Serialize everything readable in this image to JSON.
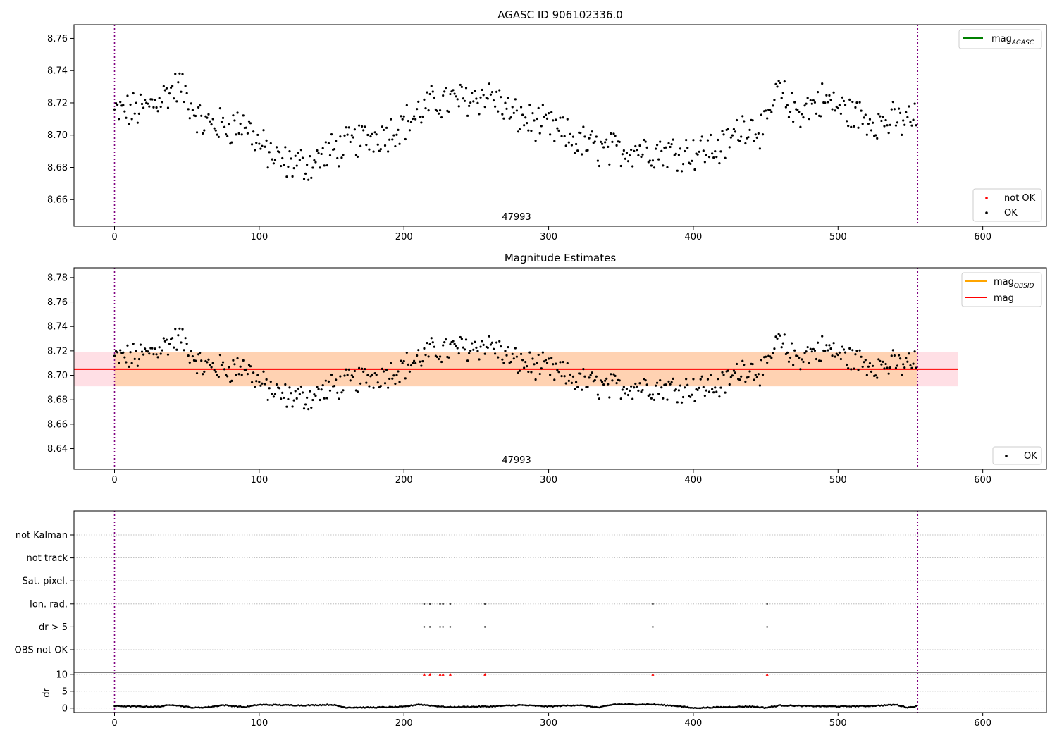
{
  "chart_data": [
    {
      "type": "scatter",
      "title": "AGASC ID 906102336.0",
      "annotation": "47993",
      "xlim": [
        -28,
        644
      ],
      "ylim": [
        8.6435,
        8.7685
      ],
      "xticks": [
        0,
        100,
        200,
        300,
        400,
        500,
        600
      ],
      "yticks": [
        8.66,
        8.68,
        8.7,
        8.72,
        8.74,
        8.76
      ],
      "ytick_labels": [
        "8.66",
        "8.68",
        "8.70",
        "8.72",
        "8.74",
        "8.76"
      ],
      "vlines": [
        0,
        555
      ],
      "legend_lines": {
        "label": "mag",
        "sub": "AGASC",
        "color": "#008000",
        "location": "upper-right"
      },
      "legend_points": {
        "location": "lower-right",
        "entries": [
          {
            "label": "not OK",
            "color": "#ff0000"
          },
          {
            "label": "OK",
            "color": "#000000"
          }
        ]
      },
      "n_points": 555,
      "trend": [
        [
          0,
          8.714
        ],
        [
          20,
          8.716
        ],
        [
          45,
          8.731
        ],
        [
          60,
          8.708
        ],
        [
          80,
          8.705
        ],
        [
          90,
          8.708
        ],
        [
          100,
          8.694
        ],
        [
          115,
          8.683
        ],
        [
          135,
          8.682
        ],
        [
          150,
          8.69
        ],
        [
          170,
          8.697
        ],
        [
          190,
          8.702
        ],
        [
          205,
          8.71
        ],
        [
          220,
          8.72
        ],
        [
          240,
          8.722
        ],
        [
          260,
          8.725
        ],
        [
          275,
          8.712
        ],
        [
          300,
          8.705
        ],
        [
          320,
          8.696
        ],
        [
          340,
          8.69
        ],
        [
          360,
          8.692
        ],
        [
          380,
          8.69
        ],
        [
          400,
          8.69
        ],
        [
          420,
          8.692
        ],
        [
          435,
          8.707
        ],
        [
          450,
          8.703
        ],
        [
          458,
          8.728
        ],
        [
          470,
          8.714
        ],
        [
          490,
          8.722
        ],
        [
          510,
          8.713
        ],
        [
          530,
          8.708
        ],
        [
          545,
          8.709
        ],
        [
          555,
          8.71
        ]
      ]
    },
    {
      "type": "scatter",
      "title": "Magnitude Estimates",
      "annotation": "47993",
      "xlim": [
        -28,
        644
      ],
      "ylim": [
        8.623,
        8.788
      ],
      "xticks": [
        0,
        100,
        200,
        300,
        400,
        500,
        600
      ],
      "yticks": [
        8.64,
        8.66,
        8.68,
        8.7,
        8.72,
        8.74,
        8.76,
        8.78
      ],
      "ytick_labels": [
        "8.64",
        "8.66",
        "8.68",
        "8.70",
        "8.72",
        "8.74",
        "8.76",
        "8.78"
      ],
      "vlines": [
        0,
        555
      ],
      "mag_line": {
        "value": 8.705,
        "x": [
          -28,
          583
        ],
        "color": "#ff0000"
      },
      "mag_band": {
        "low": 8.691,
        "high": 8.719,
        "x": [
          -28,
          583
        ],
        "color": "#ffc0cb"
      },
      "obsid_band": {
        "low": 8.691,
        "high": 8.719,
        "x": [
          0,
          555
        ],
        "color": "#ffa500"
      },
      "legend_lines": {
        "location": "upper-right",
        "entries": [
          {
            "label": "mag",
            "sub": "OBSID",
            "color": "#ffa500"
          },
          {
            "label": "mag",
            "sub": "",
            "color": "#ff0000"
          }
        ]
      },
      "legend_points": {
        "location": "lower-right",
        "entries": [
          {
            "label": "OK",
            "color": "#000000"
          }
        ]
      }
    },
    {
      "type": "scatter",
      "flag_categories": [
        "not Kalman",
        "not track",
        "Sat. pixel.",
        "Ion. rad.",
        "dr > 5",
        "OBS not OK"
      ],
      "flag_events": {
        "Ion. rad.": [
          214,
          218,
          225,
          227,
          232,
          256,
          372,
          451
        ],
        "dr > 5": [
          214,
          218,
          225,
          227,
          232,
          256,
          372,
          451
        ]
      },
      "dr_ylabel": "dr",
      "dr_yticks": [
        0,
        5,
        10
      ],
      "dr_ylim": [
        -1.3,
        10.6
      ],
      "dr_clipped_x": [
        214,
        218,
        225,
        227,
        232,
        256,
        372,
        451
      ],
      "dr_clipped_color": "#ff0000",
      "dr_profile": [
        [
          0,
          0.6
        ],
        [
          30,
          0.4
        ],
        [
          40,
          1.0
        ],
        [
          55,
          0.1
        ],
        [
          65,
          0.3
        ],
        [
          75,
          0.9
        ],
        [
          90,
          0.3
        ],
        [
          100,
          1.0
        ],
        [
          130,
          0.8
        ],
        [
          150,
          1.0
        ],
        [
          160,
          0.2
        ],
        [
          180,
          0.2
        ],
        [
          200,
          0.4
        ],
        [
          210,
          1.1
        ],
        [
          230,
          0.3
        ],
        [
          260,
          0.5
        ],
        [
          280,
          0.9
        ],
        [
          300,
          0.5
        ],
        [
          320,
          0.9
        ],
        [
          335,
          0.2
        ],
        [
          345,
          1.1
        ],
        [
          372,
          1.1
        ],
        [
          390,
          0.6
        ],
        [
          400,
          0.0
        ],
        [
          420,
          0.3
        ],
        [
          440,
          0.5
        ],
        [
          450,
          0.1
        ],
        [
          460,
          0.8
        ],
        [
          480,
          0.6
        ],
        [
          500,
          0.5
        ],
        [
          520,
          0.6
        ],
        [
          540,
          1.0
        ],
        [
          548,
          0.2
        ],
        [
          555,
          0.6
        ]
      ],
      "xlim": [
        -28,
        644
      ],
      "xticks": [
        0,
        100,
        200,
        300,
        400,
        500,
        600
      ],
      "vlines": [
        0,
        555
      ]
    }
  ]
}
